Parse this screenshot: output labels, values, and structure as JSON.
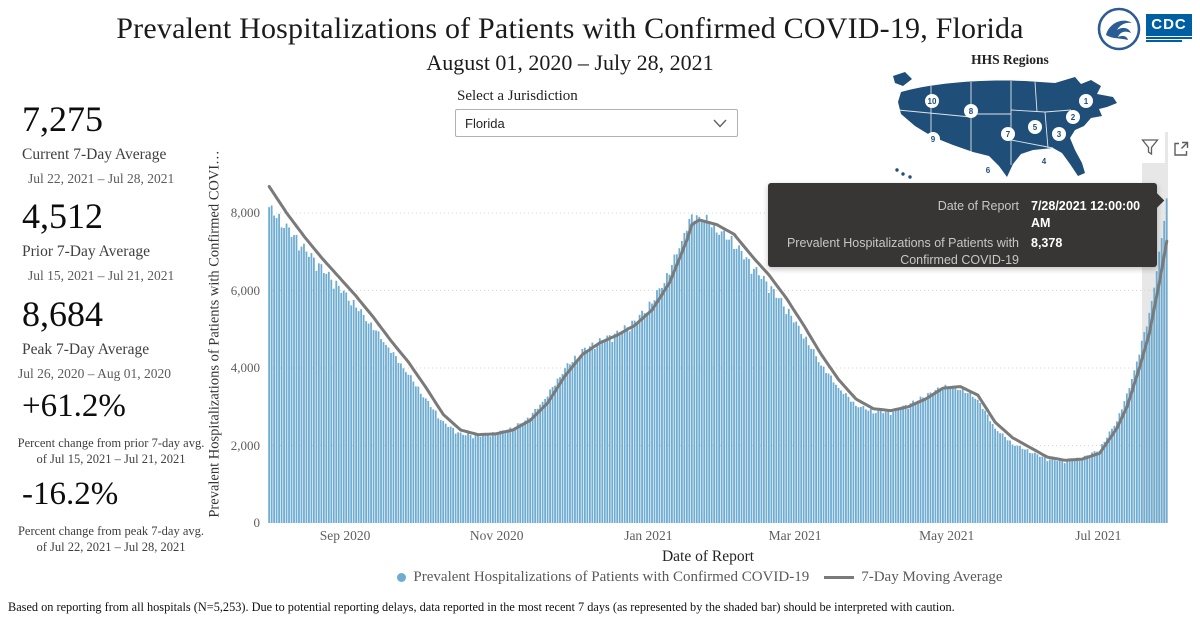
{
  "header": {
    "title": "Prevalent Hospitalizations of Patients with Confirmed COVID-19, Florida",
    "subtitle": "August 01, 2020 – July 28, 2021",
    "hhs_map_title": "HHS Regions",
    "region_labels": [
      "1",
      "2",
      "3",
      "4",
      "5",
      "6",
      "7",
      "8",
      "9",
      "10"
    ]
  },
  "logos": {
    "cdc_text": "CDC",
    "hhs_icon": "hhs-eagle-seal"
  },
  "stats": [
    {
      "value": "7,275",
      "label": "Current 7-Day Average",
      "sublabel": "Jul 22, 2021 – Jul 28, 2021"
    },
    {
      "value": "4,512",
      "label": "Prior 7-Day Average",
      "sublabel": "Jul 15, 2021 – Jul 21, 2021"
    },
    {
      "value": "8,684",
      "label": "Peak 7-Day Average",
      "sublabel": "Jul 26, 2020 – Aug 01, 2020"
    },
    {
      "value": "+61.2%",
      "label": "Percent change from prior 7-day avg. of Jul 15, 2021 – Jul 21, 2021"
    },
    {
      "value": "-16.2%",
      "label": "Percent change from peak 7-day avg. of Jul 22, 2021 – Jul 28, 2021"
    }
  ],
  "jurisdiction": {
    "label": "Select a Jurisdiction",
    "selected": "Florida"
  },
  "icons": {
    "filter": "funnel",
    "popout": "open-in-new-window",
    "dropdown": "chevron-down"
  },
  "tooltip": {
    "rows": [
      {
        "label": "Date of Report",
        "value": "7/28/2021 12:00:00 AM"
      },
      {
        "label": "Prevalent Hospitalizations of Patients with Confirmed COVID-19",
        "value": "8,378"
      }
    ]
  },
  "chart_data": {
    "type": "bar",
    "title": "Prevalent Hospitalizations of Patients with Confirmed COVID-19, Florida",
    "xlabel": "Date of Report",
    "ylabel": "Prevalent Hospitalizations of Patients with Confirmed COVI…",
    "start_date": "2020-08-01",
    "end_date": "2021-07-28",
    "num_days": 362,
    "ylim": [
      0,
      9755
    ],
    "grid": "dotted-horizontal",
    "legend_position": "bottom-center",
    "shaded_recent_days_note": "last ~7 days shaded gray",
    "y_ticks": [
      {
        "label": "0",
        "value": 0
      },
      {
        "label": "2,000",
        "value": 2000
      },
      {
        "label": "4,000",
        "value": 4000
      },
      {
        "label": "6,000",
        "value": 6000
      },
      {
        "label": "8,000",
        "value": 8000
      }
    ],
    "x_ticks": [
      {
        "label": "Sep 2020",
        "day": 31
      },
      {
        "label": "Nov 2020",
        "day": 92
      },
      {
        "label": "Jan 2021",
        "day": 153
      },
      {
        "label": "Mar 2021",
        "day": 212
      },
      {
        "label": "May 2021",
        "day": 273
      },
      {
        "label": "Jul 2021",
        "day": 334
      }
    ],
    "series": [
      {
        "name": "Prevalent Hospitalizations of Patients with Confirmed COVID-19",
        "type": "bar",
        "color": "#6FACD1",
        "note": "daily values; anchors [dayIndex,value] estimated from pixels, linearly interpolated; first bar 8150, Jan peak ~8050, last bar 8378 (tooltip)",
        "anchors": [
          [
            0,
            8150
          ],
          [
            7,
            7650
          ],
          [
            14,
            7100
          ],
          [
            21,
            6600
          ],
          [
            28,
            6100
          ],
          [
            35,
            5600
          ],
          [
            42,
            5050
          ],
          [
            49,
            4450
          ],
          [
            56,
            3850
          ],
          [
            63,
            3200
          ],
          [
            70,
            2600
          ],
          [
            77,
            2300
          ],
          [
            84,
            2250
          ],
          [
            91,
            2320
          ],
          [
            98,
            2450
          ],
          [
            105,
            2750
          ],
          [
            112,
            3300
          ],
          [
            119,
            4000
          ],
          [
            126,
            4450
          ],
          [
            133,
            4700
          ],
          [
            140,
            4900
          ],
          [
            147,
            5200
          ],
          [
            154,
            5700
          ],
          [
            161,
            6500
          ],
          [
            168,
            7650
          ],
          [
            170,
            7900
          ],
          [
            173,
            7950
          ],
          [
            177,
            7800
          ],
          [
            180,
            7600
          ],
          [
            187,
            7250
          ],
          [
            194,
            6650
          ],
          [
            201,
            6150
          ],
          [
            208,
            5550
          ],
          [
            215,
            4850
          ],
          [
            222,
            4100
          ],
          [
            229,
            3500
          ],
          [
            236,
            3050
          ],
          [
            243,
            2880
          ],
          [
            250,
            2870
          ],
          [
            257,
            3050
          ],
          [
            264,
            3280
          ],
          [
            271,
            3520
          ],
          [
            278,
            3480
          ],
          [
            285,
            3200
          ],
          [
            292,
            2450
          ],
          [
            299,
            2050
          ],
          [
            306,
            1850
          ],
          [
            313,
            1650
          ],
          [
            320,
            1600
          ],
          [
            327,
            1680
          ],
          [
            334,
            1900
          ],
          [
            341,
            2650
          ],
          [
            345,
            3300
          ],
          [
            350,
            4400
          ],
          [
            354,
            5400
          ],
          [
            358,
            6900
          ],
          [
            361,
            8378
          ]
        ]
      },
      {
        "name": "7-Day Moving Average",
        "type": "line",
        "color": "#7A7A7A",
        "note": "starts at peak 8684 (Jul 26–Aug 01 2020), Jan 2021 crest ~7820, Jun trough ~1620, ends at current avg 7275",
        "anchors": [
          [
            0,
            8684
          ],
          [
            7,
            8000
          ],
          [
            14,
            7400
          ],
          [
            21,
            6850
          ],
          [
            28,
            6350
          ],
          [
            35,
            5850
          ],
          [
            42,
            5300
          ],
          [
            49,
            4700
          ],
          [
            56,
            4150
          ],
          [
            63,
            3500
          ],
          [
            70,
            2800
          ],
          [
            77,
            2400
          ],
          [
            84,
            2280
          ],
          [
            91,
            2300
          ],
          [
            98,
            2400
          ],
          [
            105,
            2650
          ],
          [
            112,
            3100
          ],
          [
            119,
            3800
          ],
          [
            126,
            4350
          ],
          [
            133,
            4650
          ],
          [
            140,
            4850
          ],
          [
            147,
            5100
          ],
          [
            154,
            5500
          ],
          [
            161,
            6200
          ],
          [
            168,
            7300
          ],
          [
            170,
            7700
          ],
          [
            173,
            7820
          ],
          [
            180,
            7700
          ],
          [
            187,
            7450
          ],
          [
            194,
            6900
          ],
          [
            201,
            6400
          ],
          [
            208,
            5800
          ],
          [
            215,
            5100
          ],
          [
            222,
            4350
          ],
          [
            229,
            3700
          ],
          [
            236,
            3200
          ],
          [
            243,
            2950
          ],
          [
            250,
            2900
          ],
          [
            257,
            3000
          ],
          [
            264,
            3200
          ],
          [
            271,
            3480
          ],
          [
            278,
            3520
          ],
          [
            285,
            3300
          ],
          [
            292,
            2600
          ],
          [
            299,
            2200
          ],
          [
            306,
            1950
          ],
          [
            313,
            1700
          ],
          [
            320,
            1620
          ],
          [
            327,
            1650
          ],
          [
            334,
            1800
          ],
          [
            341,
            2450
          ],
          [
            345,
            3000
          ],
          [
            350,
            4000
          ],
          [
            354,
            4900
          ],
          [
            358,
            6200
          ],
          [
            361,
            7275
          ]
        ]
      }
    ]
  },
  "footer": {
    "note": "Based on reporting from all hospitals (N=5,253). Due to potential reporting delays, data reported in the most recent 7 days (as represented by the shaded bar) should be interpreted with caution."
  }
}
